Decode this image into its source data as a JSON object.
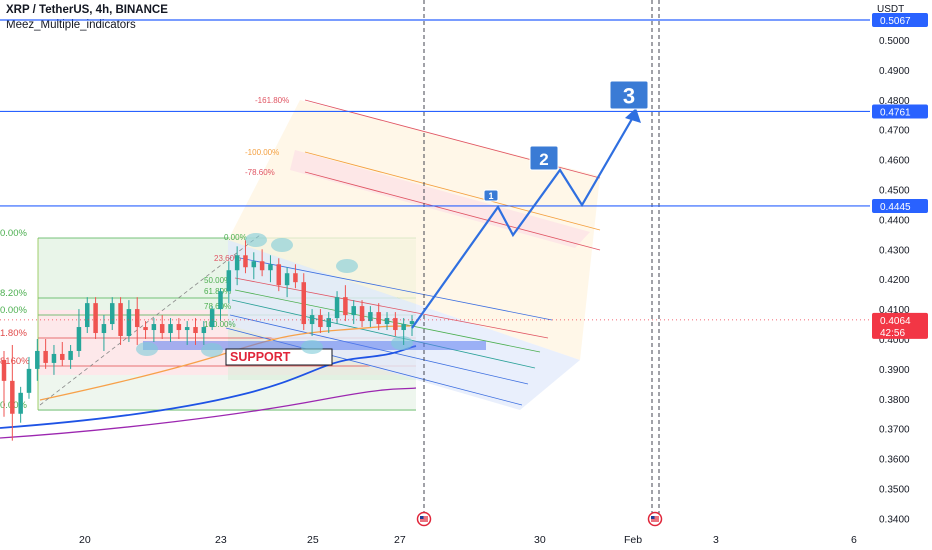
{
  "header": {
    "symbol": "XRP / TetherUS, 4h, BINANCE",
    "indicator": "Meez_Multiple_indicators"
  },
  "currency": "USDT",
  "colors": {
    "candle_up": "#26a69a",
    "candle_down": "#ef5350",
    "hline": "#2962ff",
    "arrow": "#2f6fe0",
    "orange_ma": "#f7a14a",
    "blue_ma": "#1e53e5",
    "purple_ma": "#9c27b0",
    "support": "#e0263a",
    "current_price": "#f23645"
  },
  "chart_data": {
    "type": "candlestick",
    "symbol": "XRP / TetherUS",
    "timeframe": "4h",
    "exchange": "BINANCE",
    "y_axis": {
      "ticks": [
        "0.5000",
        "0.4900",
        "0.4800",
        "0.4700",
        "0.4600",
        "0.4500",
        "0.4400",
        "0.4300",
        "0.4200",
        "0.4100",
        "0.4000",
        "0.3900",
        "0.3800",
        "0.3700",
        "0.3600",
        "0.3500",
        "0.3400"
      ],
      "range": [
        0.335,
        0.506
      ]
    },
    "x_axis": {
      "ticks": [
        "20",
        "23",
        "25",
        "27",
        "30",
        "Feb",
        "3",
        "6"
      ]
    },
    "horizontal_lines": [
      {
        "price": "0.5067"
      },
      {
        "price": "0.4761"
      },
      {
        "price": "0.4445"
      }
    ],
    "current_price": {
      "price": "0.4064",
      "countdown": "42:56"
    },
    "candles": [
      [
        0.393,
        0.396,
        0.374,
        0.386
      ],
      [
        0.386,
        0.398,
        0.366,
        0.375
      ],
      [
        0.375,
        0.384,
        0.372,
        0.382
      ],
      [
        0.382,
        0.394,
        0.38,
        0.39
      ],
      [
        0.39,
        0.4,
        0.386,
        0.396
      ],
      [
        0.396,
        0.4,
        0.39,
        0.392
      ],
      [
        0.392,
        0.398,
        0.388,
        0.395
      ],
      [
        0.395,
        0.399,
        0.391,
        0.393
      ],
      [
        0.393,
        0.398,
        0.39,
        0.396
      ],
      [
        0.396,
        0.41,
        0.394,
        0.404
      ],
      [
        0.404,
        0.414,
        0.402,
        0.412
      ],
      [
        0.412,
        0.414,
        0.4,
        0.402
      ],
      [
        0.402,
        0.408,
        0.396,
        0.405
      ],
      [
        0.405,
        0.414,
        0.403,
        0.412
      ],
      [
        0.412,
        0.414,
        0.398,
        0.401
      ],
      [
        0.401,
        0.413,
        0.399,
        0.41
      ],
      [
        0.41,
        0.414,
        0.398,
        0.404
      ],
      [
        0.404,
        0.406,
        0.4,
        0.403
      ],
      [
        0.403,
        0.407,
        0.399,
        0.405
      ],
      [
        0.405,
        0.408,
        0.4,
        0.402
      ],
      [
        0.402,
        0.407,
        0.399,
        0.405
      ],
      [
        0.405,
        0.407,
        0.4,
        0.403
      ],
      [
        0.403,
        0.406,
        0.398,
        0.404
      ],
      [
        0.404,
        0.407,
        0.398,
        0.402
      ],
      [
        0.402,
        0.406,
        0.398,
        0.404
      ],
      [
        0.404,
        0.411,
        0.403,
        0.41
      ],
      [
        0.41,
        0.417,
        0.406,
        0.416
      ],
      [
        0.416,
        0.426,
        0.412,
        0.423
      ],
      [
        0.423,
        0.431,
        0.418,
        0.428
      ],
      [
        0.428,
        0.433,
        0.422,
        0.424
      ],
      [
        0.424,
        0.429,
        0.42,
        0.426
      ],
      [
        0.426,
        0.43,
        0.421,
        0.423
      ],
      [
        0.423,
        0.428,
        0.419,
        0.425
      ],
      [
        0.425,
        0.427,
        0.416,
        0.418
      ],
      [
        0.418,
        0.424,
        0.414,
        0.422
      ],
      [
        0.422,
        0.425,
        0.417,
        0.419
      ],
      [
        0.419,
        0.422,
        0.403,
        0.405
      ],
      [
        0.405,
        0.41,
        0.401,
        0.408
      ],
      [
        0.408,
        0.41,
        0.402,
        0.404
      ],
      [
        0.404,
        0.409,
        0.402,
        0.407
      ],
      [
        0.407,
        0.416,
        0.405,
        0.414
      ],
      [
        0.414,
        0.418,
        0.406,
        0.408
      ],
      [
        0.408,
        0.413,
        0.405,
        0.411
      ],
      [
        0.411,
        0.413,
        0.404,
        0.406
      ],
      [
        0.406,
        0.411,
        0.404,
        0.409
      ],
      [
        0.409,
        0.412,
        0.403,
        0.405
      ],
      [
        0.405,
        0.409,
        0.403,
        0.407
      ],
      [
        0.407,
        0.409,
        0.401,
        0.403
      ],
      [
        0.403,
        0.407,
        0.398,
        0.405
      ],
      [
        0.405,
        0.408,
        0.401,
        0.406
      ]
    ],
    "fib_retracement_left": [
      {
        "label": "0.00%"
      },
      {
        "label": "8.20%"
      },
      {
        "label": "0.00%"
      },
      {
        "label": "1.80%"
      },
      {
        "label": "8160%"
      },
      {
        "label": "0.00%"
      }
    ],
    "fib_retracement_inner": [
      {
        "label": "0.00%"
      },
      {
        "label": "23.60%"
      },
      {
        "label": "50.00%"
      },
      {
        "label": "61.80%"
      },
      {
        "label": "78.60%"
      },
      {
        "label": "100.00%"
      }
    ],
    "fib_extension": [
      {
        "label": "-161.80%"
      },
      {
        "label": "-100.00%"
      },
      {
        "label": "-78.60%"
      }
    ],
    "annotations": [
      {
        "text": "SUPPORT"
      },
      {
        "text": "1"
      },
      {
        "text": "2"
      },
      {
        "text": "3"
      }
    ]
  }
}
